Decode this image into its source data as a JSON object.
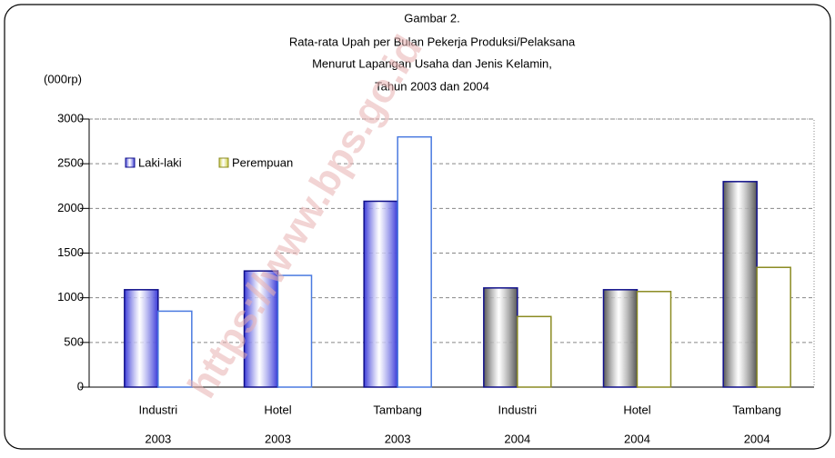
{
  "chart_data": {
    "type": "bar",
    "title": [
      "Gambar 2.",
      "Rata-rata Upah per Bulan Pekerja Produksi/Pelaksana",
      "Menurut Lapangan Usaha dan Jenis Kelamin,",
      "Tahun 2003 dan 2004"
    ],
    "y_label": "(000rp)",
    "watermark": "https://www.bps.go.id",
    "categories": [
      [
        "Industri",
        "2003"
      ],
      [
        "Hotel",
        "2003"
      ],
      [
        "Tambang",
        "2003"
      ],
      [
        "Industri",
        "2004"
      ],
      [
        "Hotel",
        "2004"
      ],
      [
        "Tambang",
        "2004"
      ]
    ],
    "series": [
      {
        "name": "Laki-laki",
        "color": "#3a3ad8",
        "values": [
          1090,
          1300,
          2080,
          1110,
          1090,
          2300
        ],
        "colors": [
          "#3a3ad8",
          "#3a3ad8",
          "#3a3ad8",
          "#555555",
          "#555555",
          "#555555"
        ]
      },
      {
        "name": "Perempuan",
        "color": "#8b8b22",
        "values": [
          850,
          1250,
          2800,
          790,
          1070,
          1340
        ],
        "colors": [
          "#4a7ae0",
          "#4a7ae0",
          "#4a7ae0",
          "#8b8b22",
          "#8b8b22",
          "#8b8b22"
        ]
      }
    ],
    "ylim": [
      0,
      3000
    ],
    "yticks": [
      0,
      500,
      1000,
      1500,
      2000,
      2500,
      3000
    ],
    "grid": true,
    "legend": "top-left"
  }
}
